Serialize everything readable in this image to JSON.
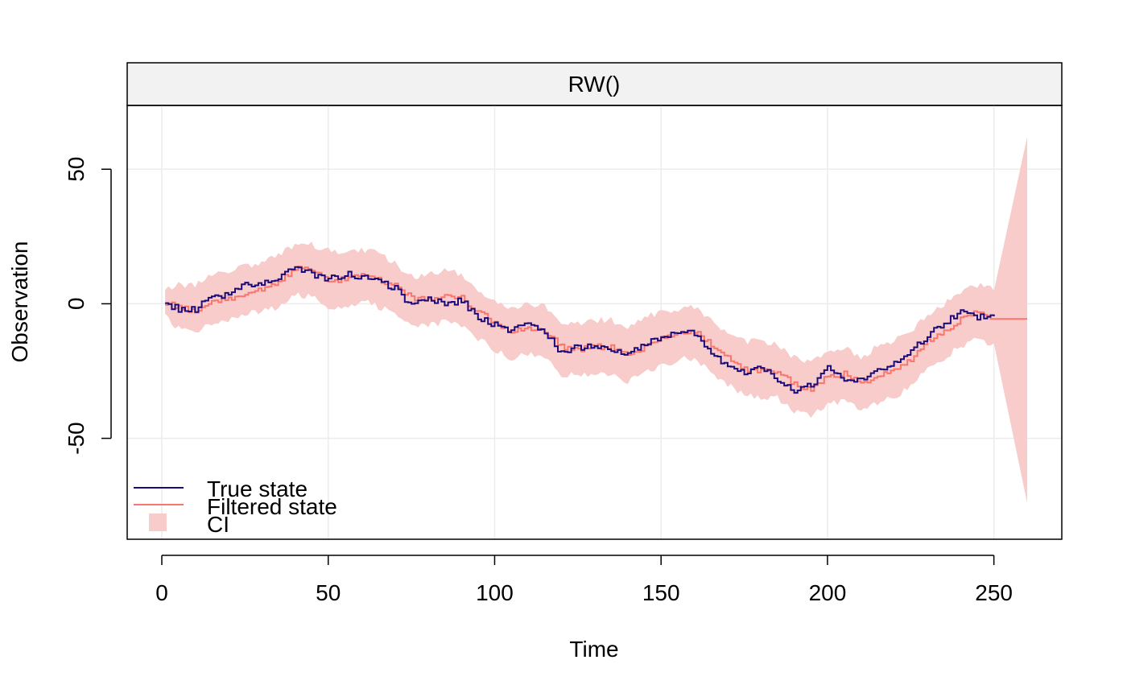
{
  "chart_data": {
    "type": "line",
    "panel_title": "RW()",
    "xlabel": "Time",
    "ylabel": "Observation",
    "xlim": [
      -10.4,
      270.4
    ],
    "ylim": [
      -87.5,
      73.7
    ],
    "x_ticks": [
      0,
      50,
      100,
      150,
      200,
      250
    ],
    "y_ticks": [
      -50,
      0,
      50
    ],
    "x_tick_labels": [
      "0",
      "50",
      "100",
      "150",
      "200",
      "250"
    ],
    "y_tick_labels": [
      "-50",
      "0",
      "50"
    ],
    "grid": true,
    "legend_position": "bottom-left",
    "legend": [
      "True state",
      "Filtered state",
      "CI"
    ],
    "colors": {
      "true_state": "#1a0a7a",
      "filtered_state": "#f8766d",
      "ci": "#f7ccca",
      "strip_bg": "#f2f2f2",
      "grid": "#ececec"
    },
    "anchors": {
      "x": [
        1,
        5,
        10,
        15,
        20,
        25,
        30,
        35,
        40,
        45,
        50,
        55,
        60,
        65,
        70,
        75,
        80,
        85,
        90,
        95,
        100,
        105,
        110,
        115,
        120,
        125,
        130,
        135,
        140,
        145,
        150,
        155,
        160,
        165,
        170,
        175,
        180,
        185,
        190,
        195,
        200,
        205,
        210,
        215,
        220,
        225,
        230,
        235,
        240,
        245,
        250
      ],
      "true_state": [
        0,
        -2,
        -2,
        3,
        3,
        8,
        7,
        10,
        14,
        11,
        9,
        11,
        10,
        8,
        6,
        -1,
        2,
        0,
        1,
        -5,
        -8,
        -10,
        -8,
        -11,
        -18,
        -16,
        -16,
        -17,
        -18,
        -15,
        -12,
        -10,
        -11,
        -18,
        -23,
        -26,
        -24,
        -28,
        -32,
        -30,
        -24,
        -28,
        -28,
        -25,
        -22,
        -17,
        -12,
        -7,
        -3,
        -5,
        -5
      ],
      "filtered_state": [
        0,
        -1,
        -3,
        1,
        2,
        4,
        5,
        8,
        13,
        13,
        9,
        9,
        11,
        9,
        7,
        2,
        2,
        3,
        2,
        -3,
        -7,
        -10,
        -9,
        -10,
        -16,
        -17,
        -16,
        -16,
        -19,
        -16,
        -13,
        -11,
        -10,
        -15,
        -20,
        -24,
        -25,
        -25,
        -30,
        -32,
        -27,
        -26,
        -30,
        -27,
        -25,
        -21,
        -14,
        -10,
        -6,
        -3,
        -6
      ],
      "ci_upper": [
        5,
        7,
        7,
        11,
        12,
        14,
        15,
        18,
        22,
        22,
        20,
        19,
        20,
        19,
        15,
        10,
        11,
        12,
        11,
        5,
        1,
        -1,
        0,
        -1,
        -7,
        -7,
        -6,
        -6,
        -9,
        -5,
        -3,
        -2,
        -1,
        -6,
        -11,
        -14,
        -14,
        -15,
        -20,
        -22,
        -17,
        -16,
        -20,
        -16,
        -14,
        -10,
        -4,
        0,
        4,
        7,
        6
      ],
      "ci_lower": [
        -5,
        -9,
        -11,
        -7,
        -6,
        -4,
        -3,
        -1,
        3,
        3,
        -1,
        -1,
        1,
        -1,
        -3,
        -8,
        -8,
        -7,
        -8,
        -13,
        -17,
        -20,
        -19,
        -20,
        -26,
        -27,
        -26,
        -26,
        -29,
        -26,
        -23,
        -21,
        -20,
        -25,
        -30,
        -34,
        -35,
        -35,
        -40,
        -42,
        -37,
        -36,
        -40,
        -37,
        -35,
        -31,
        -24,
        -20,
        -16,
        -13,
        -16
      ]
    },
    "forecast": {
      "x_start": 250,
      "x_end": 260,
      "value": -5.6,
      "ci_upper_end": 62,
      "ci_lower_end": -74
    }
  }
}
